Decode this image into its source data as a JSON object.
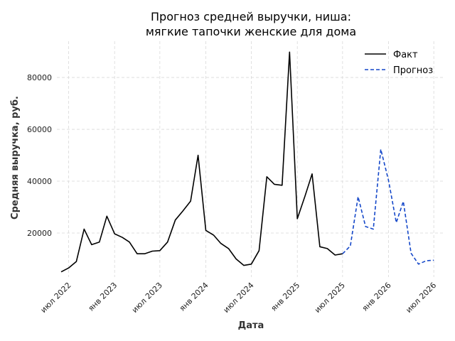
{
  "chart_data": {
    "type": "line",
    "title_lines": [
      "Прогноз средней выручки, ниша:",
      "мягкие тапочки женские для дома"
    ],
    "xlabel": "Дата",
    "ylabel": "Средняя выручка, руб.",
    "xlim": [
      "2022-05-15",
      "2026-08-15"
    ],
    "ylim": [
      3000,
      94000
    ],
    "grid": true,
    "legend_position": "top-right",
    "x_ticks": [
      {
        "date": "2022-07-01",
        "label": "июл 2022"
      },
      {
        "date": "2023-01-01",
        "label": "янв 2023"
      },
      {
        "date": "2023-07-01",
        "label": "июл 2023"
      },
      {
        "date": "2024-01-01",
        "label": "янв 2024"
      },
      {
        "date": "2024-07-01",
        "label": "июл 2024"
      },
      {
        "date": "2025-01-01",
        "label": "янв 2025"
      },
      {
        "date": "2025-07-01",
        "label": "июл 2025"
      },
      {
        "date": "2026-01-01",
        "label": "янв 2026"
      },
      {
        "date": "2026-07-01",
        "label": "июл 2026"
      }
    ],
    "y_ticks": [
      {
        "value": 20000,
        "label": "20000"
      },
      {
        "value": 40000,
        "label": "40000"
      },
      {
        "value": 60000,
        "label": "60000"
      },
      {
        "value": 80000,
        "label": "80000"
      }
    ],
    "series": [
      {
        "name": "Факт",
        "color": "#000000",
        "style": "solid",
        "points": [
          [
            "2022-06-01",
            5000
          ],
          [
            "2022-07-01",
            6500
          ],
          [
            "2022-08-01",
            9000
          ],
          [
            "2022-09-01",
            21500
          ],
          [
            "2022-10-01",
            15500
          ],
          [
            "2022-11-01",
            16500
          ],
          [
            "2022-12-01",
            26500
          ],
          [
            "2023-01-01",
            19700
          ],
          [
            "2023-02-01",
            18300
          ],
          [
            "2023-03-01",
            16500
          ],
          [
            "2023-04-01",
            12000
          ],
          [
            "2023-05-01",
            12000
          ],
          [
            "2023-06-01",
            13000
          ],
          [
            "2023-07-01",
            13200
          ],
          [
            "2023-08-01",
            16500
          ],
          [
            "2023-09-01",
            25000
          ],
          [
            "2023-10-01",
            28500
          ],
          [
            "2023-11-01",
            32300
          ],
          [
            "2023-12-01",
            50000
          ],
          [
            "2024-01-01",
            21000
          ],
          [
            "2024-02-01",
            19200
          ],
          [
            "2024-03-01",
            16000
          ],
          [
            "2024-04-01",
            14000
          ],
          [
            "2024-05-01",
            10000
          ],
          [
            "2024-06-01",
            7500
          ],
          [
            "2024-07-01",
            8000
          ],
          [
            "2024-08-01",
            13200
          ],
          [
            "2024-09-01",
            41700
          ],
          [
            "2024-10-01",
            38800
          ],
          [
            "2024-11-01",
            38400
          ],
          [
            "2024-12-01",
            89800
          ],
          [
            "2025-01-01",
            25500
          ],
          [
            "2025-02-01",
            34300
          ],
          [
            "2025-03-01",
            42800
          ],
          [
            "2025-04-01",
            14700
          ],
          [
            "2025-05-01",
            14000
          ],
          [
            "2025-06-01",
            11500
          ],
          [
            "2025-07-01",
            12000
          ]
        ]
      },
      {
        "name": "Прогноз",
        "color": "#1447c9",
        "style": "dashed",
        "points": [
          [
            "2025-07-01",
            12000
          ],
          [
            "2025-08-01",
            15000
          ],
          [
            "2025-09-01",
            34000
          ],
          [
            "2025-10-01",
            22500
          ],
          [
            "2025-11-01",
            21500
          ],
          [
            "2025-12-01",
            52300
          ],
          [
            "2026-01-01",
            40300
          ],
          [
            "2026-02-01",
            24000
          ],
          [
            "2026-03-01",
            32200
          ],
          [
            "2026-04-01",
            12200
          ],
          [
            "2026-05-01",
            8000
          ],
          [
            "2026-06-01",
            9300
          ],
          [
            "2026-07-01",
            9500
          ]
        ]
      }
    ]
  }
}
